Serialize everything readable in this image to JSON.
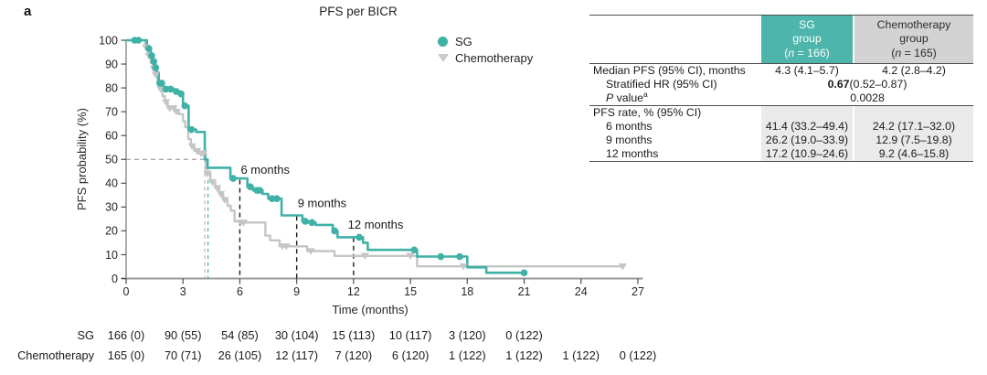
{
  "figure": {
    "panel_label": "a"
  },
  "chart_data": {
    "type": "line",
    "subtype": "kaplan-meier-step",
    "title": "PFS per BICR",
    "xlabel": "Time (months)",
    "ylabel": "PFS probability (%)",
    "xlim": [
      0,
      27
    ],
    "ylim": [
      0,
      100
    ],
    "xticks": [
      0,
      3,
      6,
      9,
      12,
      15,
      18,
      21,
      24,
      27
    ],
    "yticks": [
      0,
      10,
      20,
      30,
      40,
      50,
      60,
      70,
      80,
      90,
      100
    ],
    "grid": false,
    "legend_position": "top-right",
    "series": [
      {
        "name": "Chemotherapy",
        "color": "#c5c5c5",
        "marker": "triangle-down",
        "start": [
          0,
          100
        ],
        "end_time": 26.2,
        "drops": [
          [
            1.0,
            97
          ],
          [
            1.15,
            93.5
          ],
          [
            1.3,
            90.5
          ],
          [
            1.42,
            88
          ],
          [
            1.52,
            85.5
          ],
          [
            1.65,
            82.5
          ],
          [
            1.78,
            79.5
          ],
          [
            1.92,
            76.5
          ],
          [
            2.05,
            74
          ],
          [
            2.2,
            71.5
          ],
          [
            2.6,
            70
          ],
          [
            2.78,
            69
          ],
          [
            3.0,
            66
          ],
          [
            3.12,
            63.5
          ],
          [
            3.28,
            58.5
          ],
          [
            3.42,
            55.5
          ],
          [
            3.6,
            53.5
          ],
          [
            3.82,
            52.5
          ],
          [
            4.2,
            44
          ],
          [
            4.45,
            40.5
          ],
          [
            4.7,
            38
          ],
          [
            4.92,
            35.5
          ],
          [
            5.12,
            33
          ],
          [
            5.35,
            30.5
          ],
          [
            5.52,
            28.5
          ],
          [
            5.72,
            24
          ],
          [
            6.3,
            23.5
          ],
          [
            7.35,
            18
          ],
          [
            7.6,
            16
          ],
          [
            8.1,
            13.5
          ],
          [
            9.55,
            11.5
          ],
          [
            11.0,
            9.5
          ],
          [
            15.35,
            5.1
          ]
        ],
        "censors": [
          [
            1.05,
            97
          ],
          [
            1.2,
            93.5
          ],
          [
            1.46,
            88
          ],
          [
            1.56,
            85.5
          ],
          [
            1.82,
            79.5
          ],
          [
            2.1,
            74
          ],
          [
            2.3,
            71.5
          ],
          [
            2.5,
            71.5
          ],
          [
            2.65,
            70
          ],
          [
            3.48,
            55.5
          ],
          [
            3.75,
            53.5
          ],
          [
            3.95,
            52.5
          ],
          [
            4.08,
            52.5
          ],
          [
            4.3,
            44
          ],
          [
            4.55,
            40.5
          ],
          [
            4.8,
            38
          ],
          [
            5.0,
            35.5
          ],
          [
            5.2,
            33
          ],
          [
            6.05,
            23.5
          ],
          [
            6.2,
            23.5
          ],
          [
            8.25,
            13.5
          ],
          [
            8.45,
            13.5
          ],
          [
            9.75,
            11.5
          ],
          [
            12.6,
            9.5
          ],
          [
            15.0,
            9.5
          ],
          [
            17.8,
            5.1
          ],
          [
            26.2,
            5.1
          ]
        ]
      },
      {
        "name": "SG",
        "color": "#3fb1a7",
        "marker": "circle",
        "start": [
          0,
          100
        ],
        "end_time": 21,
        "drops": [
          [
            1.1,
            96.5
          ],
          [
            1.3,
            93.5
          ],
          [
            1.42,
            91
          ],
          [
            1.52,
            88.5
          ],
          [
            1.62,
            86.5
          ],
          [
            1.72,
            82
          ],
          [
            1.95,
            79.5
          ],
          [
            2.55,
            78.5
          ],
          [
            2.85,
            77.5
          ],
          [
            3.0,
            72.5
          ],
          [
            3.3,
            62.5
          ],
          [
            3.7,
            61.5
          ],
          [
            4.15,
            50
          ],
          [
            4.3,
            46.5
          ],
          [
            5.5,
            42
          ],
          [
            6.4,
            38.5
          ],
          [
            6.7,
            37
          ],
          [
            7.2,
            35.5
          ],
          [
            7.5,
            33.5
          ],
          [
            8.2,
            26.5
          ],
          [
            9.3,
            24
          ],
          [
            9.6,
            23.5
          ],
          [
            10.0,
            22.5
          ],
          [
            10.9,
            20
          ],
          [
            11.15,
            17.3
          ],
          [
            12.5,
            15
          ],
          [
            12.75,
            12
          ],
          [
            15.35,
            9.2
          ],
          [
            18.0,
            4.7
          ],
          [
            19.0,
            2.4
          ]
        ],
        "censors": [
          [
            0.45,
            100
          ],
          [
            0.65,
            100
          ],
          [
            1.2,
            96.5
          ],
          [
            1.35,
            93.5
          ],
          [
            1.46,
            91
          ],
          [
            1.56,
            88.5
          ],
          [
            1.78,
            82
          ],
          [
            1.88,
            82
          ],
          [
            2.1,
            79.5
          ],
          [
            2.35,
            79.5
          ],
          [
            2.65,
            78.5
          ],
          [
            2.9,
            77.5
          ],
          [
            3.1,
            72.5
          ],
          [
            3.45,
            62.5
          ],
          [
            5.65,
            42
          ],
          [
            6.55,
            38.5
          ],
          [
            6.9,
            37
          ],
          [
            7.05,
            37
          ],
          [
            7.7,
            33.5
          ],
          [
            7.95,
            33.5
          ],
          [
            9.45,
            24
          ],
          [
            9.8,
            23.5
          ],
          [
            11.0,
            20
          ],
          [
            12.3,
            17.3
          ],
          [
            15.2,
            12
          ],
          [
            16.6,
            9.2
          ],
          [
            17.6,
            9.2
          ],
          [
            21,
            2.4
          ]
        ]
      }
    ],
    "annotations": [
      {
        "text": "6 months",
        "x": 6.05,
        "y": 44
      },
      {
        "text": "9 months",
        "x": 9.05,
        "y": 30
      },
      {
        "text": "12 months",
        "x": 11.7,
        "y": 21
      }
    ],
    "reference_lines": {
      "median_y": 50,
      "median_h_extent": 4.32,
      "median_verticals": [
        {
          "x": 4.15,
          "color": "#b5b5b5"
        },
        {
          "x": 4.32,
          "color": "#3fb1a7"
        }
      ],
      "timepoints": [
        {
          "x": 6,
          "y_top": 41.4
        },
        {
          "x": 9,
          "y_top": 26.2
        },
        {
          "x": 12,
          "y_top": 17.2
        }
      ]
    }
  },
  "risk_table": {
    "rows": [
      {
        "label": "SG",
        "values": [
          "166 (0)",
          "90 (55)",
          "54 (85)",
          "30 (104)",
          "15 (113)",
          "10 (117)",
          "3 (120)",
          "0 (122)"
        ]
      },
      {
        "label": "Chemotherapy",
        "values": [
          "165 (0)",
          "70 (71)",
          "26 (105)",
          "12 (117)",
          "7 (120)",
          "6 (120)",
          "1 (122)",
          "1 (122)",
          "1 (122)",
          "0 (122)"
        ]
      }
    ]
  },
  "stats_table": {
    "header": {
      "sg": {
        "line1": "SG",
        "line2": "group",
        "n_pre": "(",
        "n_italic": "n",
        "n_post": " = 166)"
      },
      "chemo": {
        "line1": "Chemotherapy",
        "line2": "group",
        "n_pre": "(",
        "n_italic": "n",
        "n_post": " = 165)"
      }
    },
    "median_row": {
      "label": "Median PFS (95% CI), months",
      "sg": "4.3 (4.1–5.7)",
      "chemo": "4.2 (2.8–4.2)"
    },
    "hr_row": {
      "label": "Stratified HR (95% CI)",
      "value_bold": "0.67",
      "value_rest": " (0.52–0.87)"
    },
    "p_row": {
      "label_italic": "P",
      "label_rest": " value",
      "label_sup": "a",
      "value": "0.0028"
    },
    "rate_header": {
      "label": "PFS rate, % (95% CI)"
    },
    "rate_rows": [
      {
        "label": "6 months",
        "sg": "41.4 (33.2–49.4)",
        "chemo": "24.2 (17.1–32.0)"
      },
      {
        "label": "9 months",
        "sg": "26.2 (19.0–33.9)",
        "chemo": "12.9 (7.5–19.8)"
      },
      {
        "label": "12 months",
        "sg": "17.2 (10.9–24.6)",
        "chemo": "9.2 (4.6–15.8)"
      }
    ],
    "colors": {
      "sg_header_bg": "#4db5ab",
      "chemo_header_bg": "#d3d3d3",
      "rate_shade_bg": "#eaeaea",
      "teal": "#3fb1a7",
      "chemo_gray": "#c5c5c5"
    }
  }
}
